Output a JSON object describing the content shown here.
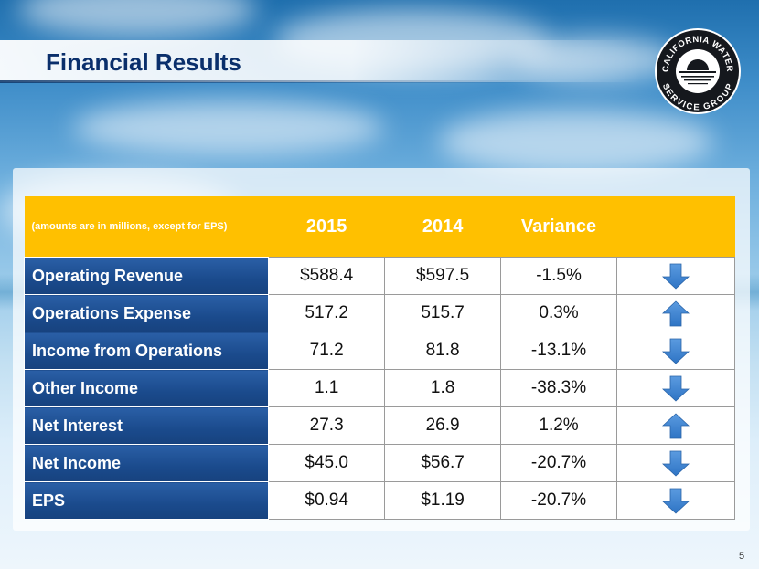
{
  "slide": {
    "title": "Financial Results",
    "page_number": "5",
    "logo_text": [
      "CALIFORNIA WATER",
      "SERVICE GROUP"
    ]
  },
  "table": {
    "note": "(amounts are in millions, except for EPS)",
    "columns": [
      "2015",
      "2014",
      "Variance"
    ],
    "rows": [
      {
        "label": "Operating Revenue",
        "y2015": "$588.4",
        "y2014": "$597.5",
        "variance": "-1.5%",
        "direction": "down"
      },
      {
        "label": "Operations Expense",
        "y2015": "517.2",
        "y2014": "515.7",
        "variance": "0.3%",
        "direction": "up"
      },
      {
        "label": "Income from Operations",
        "y2015": "71.2",
        "y2014": "81.8",
        "variance": "-13.1%",
        "direction": "down"
      },
      {
        "label": "Other Income",
        "y2015": "1.1",
        "y2014": "1.8",
        "variance": "-38.3%",
        "direction": "down"
      },
      {
        "label": "Net Interest",
        "y2015": "27.3",
        "y2014": "26.9",
        "variance": "1.2%",
        "direction": "up"
      },
      {
        "label": "Net Income",
        "y2015": "$45.0",
        "y2014": "$56.7",
        "variance": "-20.7%",
        "direction": "down"
      },
      {
        "label": "EPS",
        "y2015": "$0.94",
        "y2014": "$1.19",
        "variance": "-20.7%",
        "direction": "down"
      }
    ]
  },
  "colors": {
    "header": "#ffc000",
    "label_cell": "#1a4a8c",
    "arrow": "#2e74c4",
    "title": "#0a2f6b"
  }
}
